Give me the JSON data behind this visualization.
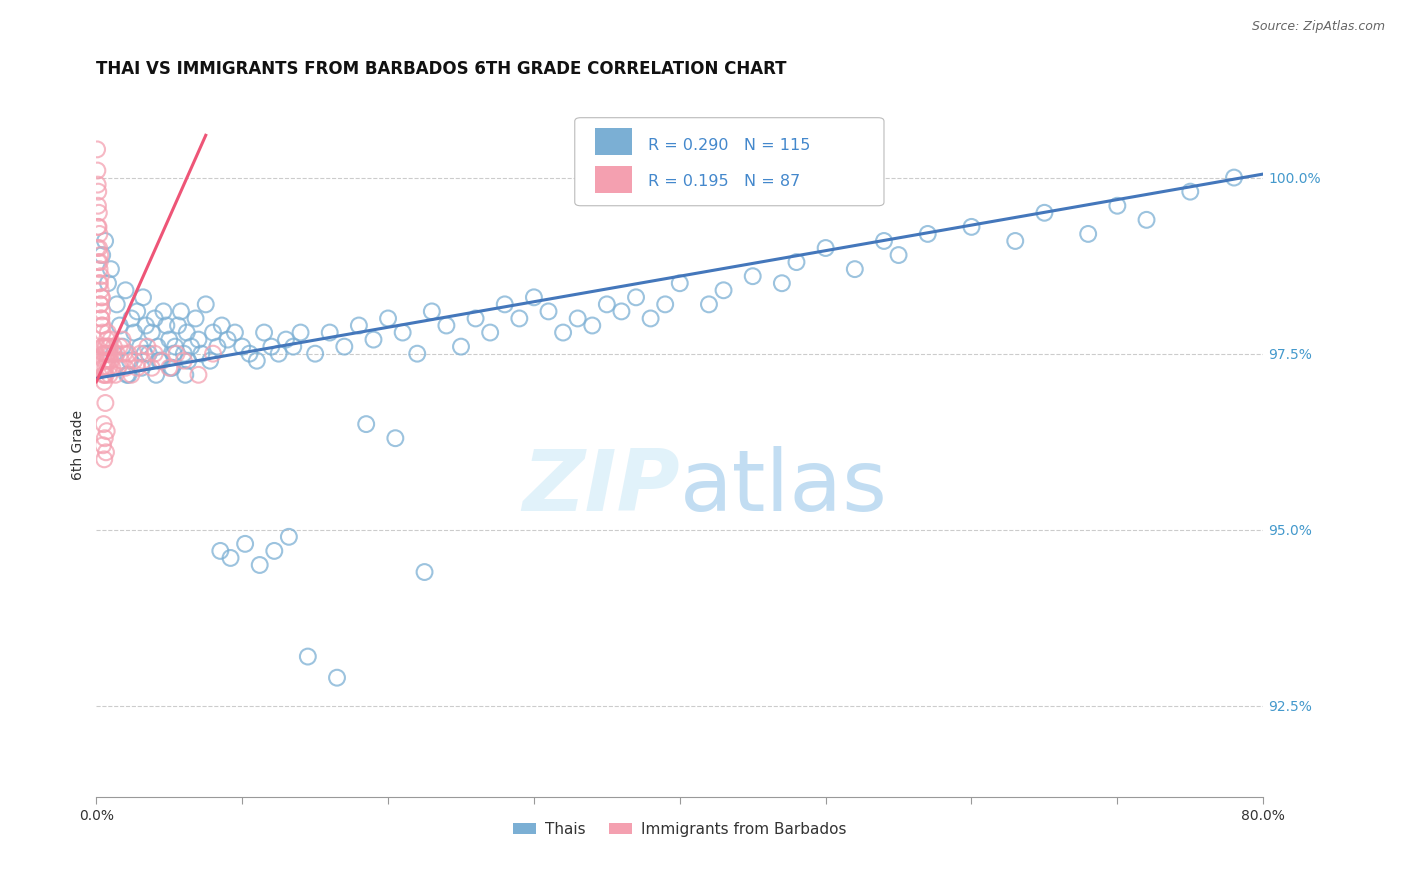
{
  "title": "THAI VS IMMIGRANTS FROM BARBADOS 6TH GRADE CORRELATION CHART",
  "source": "Source: ZipAtlas.com",
  "ylabel": "6th Grade",
  "ytick_labels": [
    "92.5%",
    "95.0%",
    "97.5%",
    "100.0%"
  ],
  "ytick_values": [
    92.5,
    95.0,
    97.5,
    100.0
  ],
  "xmin": 0.0,
  "xmax": 80.0,
  "ymin": 91.2,
  "ymax": 101.2,
  "blue_R": 0.29,
  "blue_N": 115,
  "pink_R": 0.195,
  "pink_N": 87,
  "blue_color": "#7BAFD4",
  "pink_color": "#F4A0B0",
  "blue_line_color": "#4477BB",
  "pink_line_color": "#EE5577",
  "legend_blue_label": "Thais",
  "legend_pink_label": "Immigrants from Barbados",
  "blue_trend_x": [
    0.0,
    80.0
  ],
  "blue_trend_y": [
    97.15,
    100.05
  ],
  "pink_trend_x": [
    0.0,
    7.5
  ],
  "pink_trend_y": [
    97.1,
    100.6
  ],
  "blue_points_x": [
    0.4,
    0.6,
    0.8,
    1.0,
    1.2,
    1.4,
    1.6,
    1.8,
    2.0,
    2.2,
    2.4,
    2.6,
    2.8,
    3.0,
    3.2,
    3.4,
    3.6,
    3.8,
    4.0,
    4.2,
    4.4,
    4.6,
    4.8,
    5.0,
    5.2,
    5.4,
    5.6,
    5.8,
    6.0,
    6.2,
    6.5,
    6.8,
    7.0,
    7.2,
    7.5,
    7.8,
    8.0,
    8.3,
    8.6,
    9.0,
    9.5,
    10.0,
    10.5,
    11.0,
    11.5,
    12.0,
    12.5,
    13.0,
    13.5,
    14.0,
    15.0,
    16.0,
    17.0,
    18.0,
    19.0,
    20.0,
    21.0,
    22.0,
    23.0,
    24.0,
    25.0,
    26.0,
    27.0,
    28.0,
    29.0,
    30.0,
    31.0,
    32.0,
    33.0,
    34.0,
    35.0,
    36.0,
    37.0,
    38.0,
    39.0,
    40.0,
    42.0,
    43.0,
    45.0,
    47.0,
    48.0,
    50.0,
    52.0,
    54.0,
    55.0,
    57.0,
    60.0,
    63.0,
    65.0,
    68.0,
    70.0,
    72.0,
    75.0,
    78.0,
    2.1,
    2.3,
    3.1,
    3.3,
    4.1,
    4.3,
    5.1,
    5.3,
    6.1,
    6.3,
    8.5,
    9.2,
    10.2,
    11.2,
    12.2,
    13.2,
    14.5,
    16.5,
    18.5,
    20.5,
    22.5
  ],
  "blue_points_y": [
    98.9,
    99.1,
    98.5,
    98.7,
    97.5,
    98.2,
    97.9,
    97.6,
    98.4,
    97.2,
    98.0,
    97.8,
    98.1,
    97.6,
    98.3,
    97.9,
    97.5,
    97.8,
    98.0,
    97.6,
    97.4,
    98.1,
    97.9,
    97.7,
    97.3,
    97.6,
    97.9,
    98.1,
    97.5,
    97.8,
    97.6,
    98.0,
    97.7,
    97.5,
    98.2,
    97.4,
    97.8,
    97.6,
    97.9,
    97.7,
    97.8,
    97.6,
    97.5,
    97.4,
    97.8,
    97.6,
    97.5,
    97.7,
    97.6,
    97.8,
    97.5,
    97.8,
    97.6,
    97.9,
    97.7,
    98.0,
    97.8,
    97.5,
    98.1,
    97.9,
    97.6,
    98.0,
    97.8,
    98.2,
    98.0,
    98.3,
    98.1,
    97.8,
    98.0,
    97.9,
    98.2,
    98.1,
    98.3,
    98.0,
    98.2,
    98.5,
    98.2,
    98.4,
    98.6,
    98.5,
    98.8,
    99.0,
    98.7,
    99.1,
    98.9,
    99.2,
    99.3,
    99.1,
    99.5,
    99.2,
    99.6,
    99.4,
    99.8,
    100.0,
    97.2,
    97.4,
    97.3,
    97.5,
    97.2,
    97.4,
    97.3,
    97.5,
    97.2,
    97.4,
    94.7,
    94.6,
    94.8,
    94.5,
    94.7,
    94.9,
    93.2,
    92.9,
    96.5,
    96.3,
    94.4
  ],
  "pink_points_x": [
    0.05,
    0.07,
    0.09,
    0.11,
    0.13,
    0.15,
    0.17,
    0.19,
    0.21,
    0.23,
    0.25,
    0.27,
    0.29,
    0.31,
    0.33,
    0.35,
    0.37,
    0.39,
    0.41,
    0.43,
    0.45,
    0.47,
    0.49,
    0.51,
    0.53,
    0.55,
    0.57,
    0.59,
    0.61,
    0.63,
    0.65,
    0.67,
    0.7,
    0.73,
    0.75,
    0.78,
    0.8,
    0.83,
    0.85,
    0.88,
    0.9,
    0.93,
    0.95,
    0.98,
    1.0,
    1.1,
    1.2,
    1.3,
    1.4,
    1.5,
    1.6,
    1.7,
    1.8,
    1.9,
    2.0,
    2.2,
    2.4,
    2.6,
    2.8,
    3.0,
    3.2,
    3.5,
    3.8,
    4.0,
    4.5,
    5.0,
    5.5,
    6.0,
    7.0,
    8.0,
    0.06,
    0.1,
    0.14,
    0.18,
    0.22,
    0.26,
    0.3,
    0.34,
    0.38,
    0.42,
    0.46,
    0.5,
    0.54,
    0.58,
    0.62,
    0.66,
    0.71
  ],
  "pink_points_y": [
    100.4,
    100.1,
    99.9,
    99.6,
    99.8,
    99.3,
    99.5,
    99.0,
    99.2,
    98.8,
    98.5,
    98.9,
    98.2,
    98.6,
    98.0,
    98.3,
    97.9,
    98.1,
    97.6,
    97.8,
    97.3,
    97.6,
    97.2,
    97.5,
    97.1,
    97.4,
    97.2,
    97.6,
    97.3,
    97.5,
    97.2,
    97.6,
    97.4,
    97.7,
    97.5,
    97.8,
    97.4,
    97.6,
    97.3,
    97.5,
    97.2,
    97.6,
    97.4,
    97.7,
    97.5,
    97.3,
    97.6,
    97.2,
    97.5,
    97.3,
    97.6,
    97.4,
    97.7,
    97.5,
    97.3,
    97.5,
    97.2,
    97.4,
    97.3,
    97.5,
    97.4,
    97.6,
    97.3,
    97.5,
    97.4,
    97.3,
    97.5,
    97.4,
    97.2,
    97.5,
    99.0,
    99.3,
    98.8,
    98.5,
    98.7,
    98.2,
    98.4,
    98.0,
    98.3,
    97.9,
    96.2,
    96.5,
    96.0,
    96.3,
    96.8,
    96.1,
    96.4
  ]
}
